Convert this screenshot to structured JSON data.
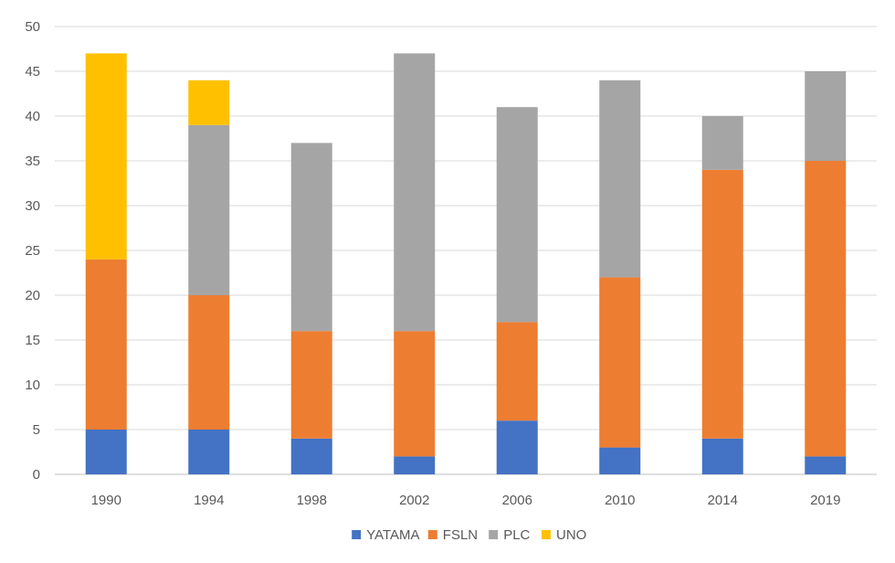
{
  "chart_data": {
    "type": "bar",
    "stacked": true,
    "title": "",
    "xlabel": "",
    "ylabel": "",
    "categories": [
      "1990",
      "1994",
      "1998",
      "2002",
      "2006",
      "2010",
      "2014",
      "2019"
    ],
    "ylim": [
      0,
      50
    ],
    "yticks": [
      "0",
      "5",
      "10",
      "15",
      "20",
      "25",
      "30",
      "35",
      "40",
      "45",
      "50"
    ],
    "grid": true,
    "legend_position": "bottom",
    "series": [
      {
        "name": "YATAMA",
        "color": "#4472C4",
        "values": [
          5,
          5,
          4,
          2,
          6,
          3,
          4,
          2
        ]
      },
      {
        "name": "FSLN",
        "color": "#ED7D31",
        "values": [
          19,
          15,
          12,
          14,
          11,
          19,
          30,
          33
        ]
      },
      {
        "name": "PLC",
        "color": "#A5A5A5",
        "values": [
          0,
          19,
          21,
          31,
          24,
          22,
          6,
          10
        ]
      },
      {
        "name": "UNO",
        "color": "#FFC000",
        "values": [
          23,
          5,
          0,
          0,
          0,
          0,
          0,
          0
        ]
      }
    ]
  }
}
